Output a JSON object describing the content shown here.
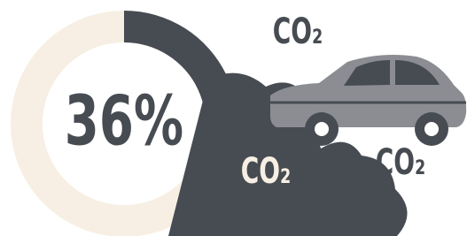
{
  "chart_data": {
    "type": "donut",
    "values": [
      36
    ],
    "value_labels": [
      "36%"
    ],
    "color": "#474b52",
    "track_color": "#f7efe3",
    "annotations": [
      "CO₂",
      "CO₂",
      "CO₂"
    ]
  }
}
